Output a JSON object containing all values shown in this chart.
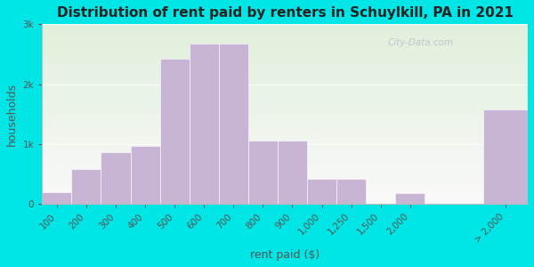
{
  "title": "Distribution of rent paid by renters in Schuylkill, PA in 2021",
  "xlabel": "rent paid ($)",
  "ylabel": "households",
  "bar_color": "#c8b4d4",
  "background_outer": "#00e5e5",
  "background_inner": "#f0f5e8",
  "categories": [
    "100",
    "200",
    "300",
    "400",
    "500",
    "600",
    "700",
    "800",
    "900",
    "1,000",
    "1,250",
    "1,500",
    "2,000",
    "> 2,000"
  ],
  "values": [
    200,
    580,
    870,
    960,
    2430,
    2680,
    2680,
    1060,
    1060,
    420,
    420,
    0,
    175,
    1580
  ],
  "yticks": [
    0,
    1000,
    2000,
    3000
  ],
  "ytick_labels": [
    "0",
    "1k",
    "2k",
    "3k"
  ],
  "ylim": [
    0,
    3000
  ],
  "watermark": "City-Data.com",
  "title_fontsize": 11,
  "axis_label_fontsize": 9,
  "tick_fontsize": 7.5
}
